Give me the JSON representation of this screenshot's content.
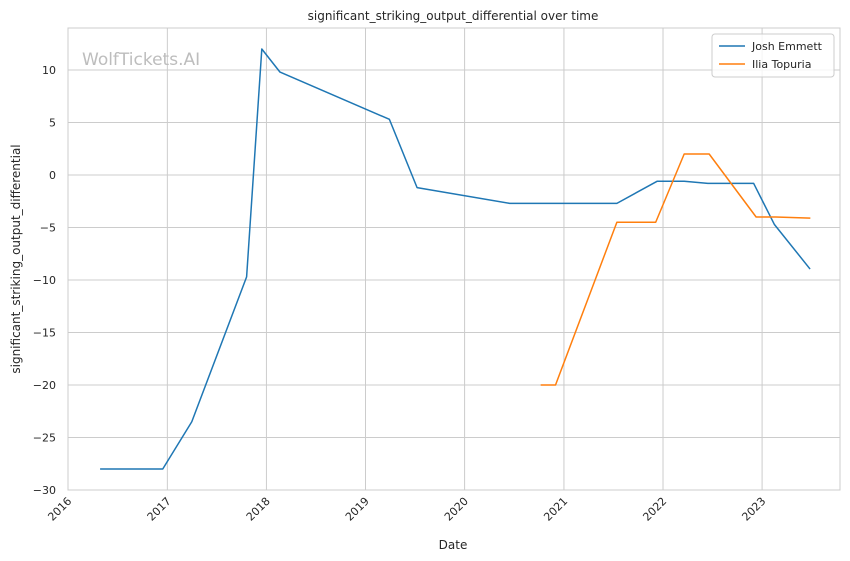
{
  "chart_data": {
    "type": "line",
    "title": "significant_striking_output_differential over time",
    "xlabel": "Date",
    "ylabel": "significant_striking_output_differential",
    "watermark": "WolfTickets.AI",
    "xlim": [
      "2016-01-01",
      "2023-10-15"
    ],
    "ylim": [
      -30,
      14
    ],
    "x_ticks": [
      "2016-01-01",
      "2017-01-01",
      "2018-01-01",
      "2019-01-01",
      "2020-01-01",
      "2021-01-01",
      "2022-01-01",
      "2023-01-01"
    ],
    "x_tick_labels": [
      "2016",
      "2017",
      "2018",
      "2019",
      "2020",
      "2021",
      "2022",
      "2023"
    ],
    "y_ticks": [
      10,
      5,
      0,
      -5,
      -10,
      -15,
      -20,
      -25,
      -30
    ],
    "y_tick_labels": [
      "10",
      "5",
      "0",
      "−5",
      "−10",
      "−15",
      "−20",
      "−25",
      "−30"
    ],
    "grid": true,
    "legend_position": "top-right",
    "series": [
      {
        "name": "Josh Emmett",
        "color": "#1f77b4",
        "points": [
          [
            "2016-05-01",
            -28
          ],
          [
            "2016-12-15",
            -28
          ],
          [
            "2017-04-01",
            -23.5
          ],
          [
            "2017-10-20",
            -9.7
          ],
          [
            "2017-12-15",
            12
          ],
          [
            "2018-02-20",
            9.8
          ],
          [
            "2019-03-30",
            5.3
          ],
          [
            "2019-07-10",
            -1.2
          ],
          [
            "2020-06-15",
            -2.7
          ],
          [
            "2021-07-15",
            -2.7
          ],
          [
            "2021-12-10",
            -0.6
          ],
          [
            "2022-03-20",
            -0.6
          ],
          [
            "2022-06-15",
            -0.8
          ],
          [
            "2022-12-01",
            -0.8
          ],
          [
            "2023-02-15",
            -4.7
          ],
          [
            "2023-06-25",
            -8.9
          ]
        ]
      },
      {
        "name": "Ilia Topuria",
        "color": "#ff7f0e",
        "points": [
          [
            "2020-10-10",
            -20
          ],
          [
            "2020-12-01",
            -20
          ],
          [
            "2021-07-15",
            -4.5
          ],
          [
            "2021-12-05",
            -4.5
          ],
          [
            "2022-03-20",
            2
          ],
          [
            "2022-06-20",
            2
          ],
          [
            "2022-12-10",
            -4
          ],
          [
            "2023-02-20",
            -4
          ],
          [
            "2023-06-25",
            -4.1
          ]
        ]
      }
    ]
  }
}
